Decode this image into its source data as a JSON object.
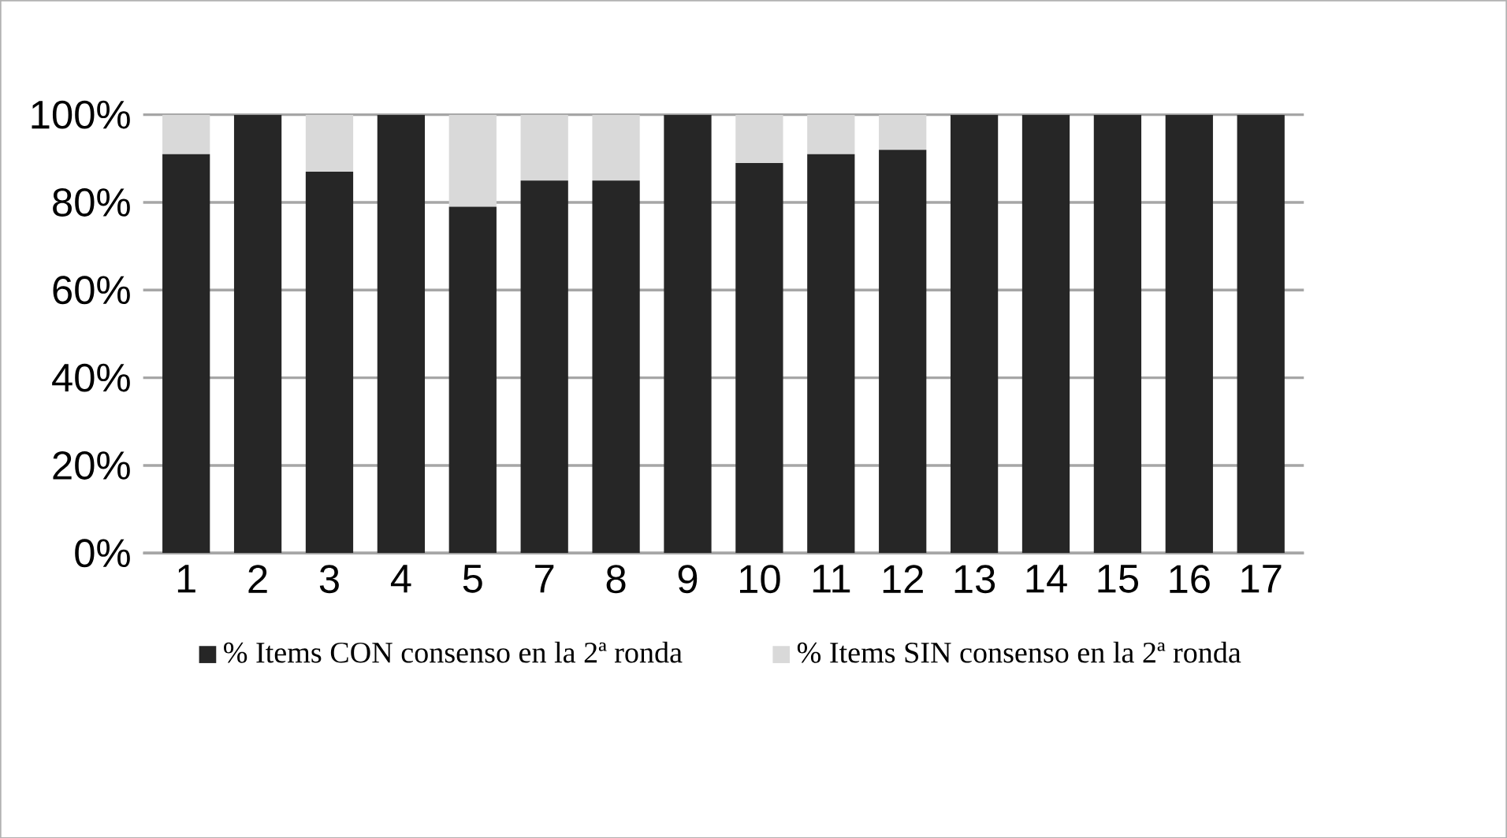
{
  "chart_data": {
    "type": "bar",
    "stacked": true,
    "categories": [
      "1",
      "2",
      "3",
      "4",
      "5",
      "7",
      "8",
      "9",
      "10",
      "11",
      "12",
      "13",
      "14",
      "15",
      "16",
      "17"
    ],
    "series": [
      {
        "name": "% Items CON consenso en la 2ª ronda",
        "color": "#262626",
        "values": [
          91,
          100,
          87,
          100,
          79,
          85,
          85,
          100,
          89,
          91,
          92,
          100,
          100,
          100,
          100,
          100
        ]
      },
      {
        "name": "% Items SIN consenso en la 2ª ronda",
        "color": "#d9d9d9",
        "values": [
          9,
          0,
          13,
          0,
          21,
          15,
          15,
          0,
          11,
          9,
          8,
          0,
          0,
          0,
          0,
          0
        ]
      }
    ],
    "ylim": [
      0,
      100
    ],
    "yticks": [
      {
        "value": 0,
        "label": "0%"
      },
      {
        "value": 20,
        "label": "20%"
      },
      {
        "value": 40,
        "label": "40%"
      },
      {
        "value": 60,
        "label": "60%"
      },
      {
        "value": 80,
        "label": "80%"
      },
      {
        "value": 100,
        "label": "100%"
      }
    ],
    "grid": "y",
    "legend": "bottom"
  }
}
